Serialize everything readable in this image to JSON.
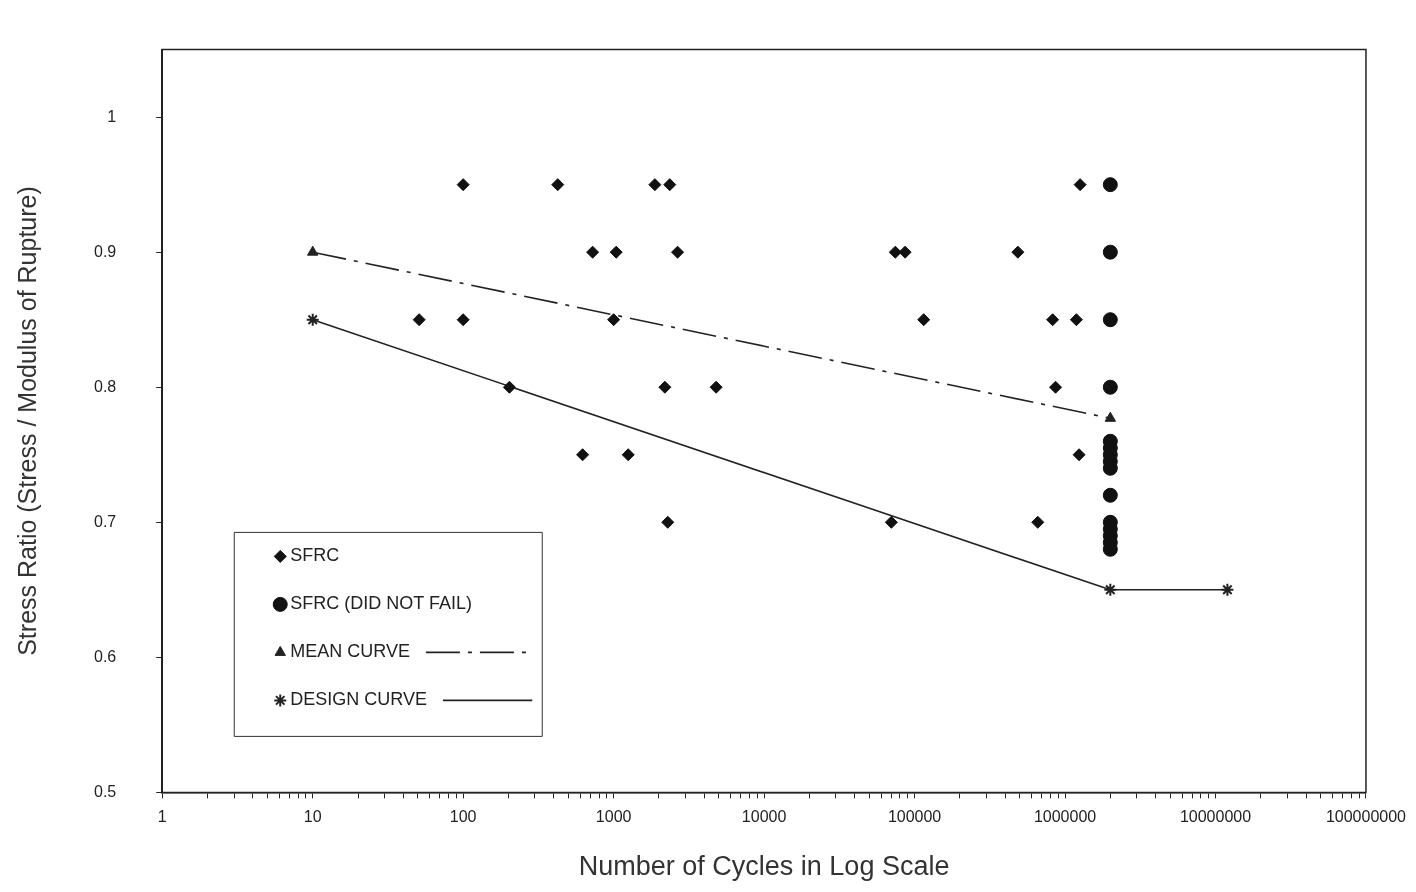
{
  "chart_data": {
    "type": "scatter",
    "xlabel": "Number of Cycles in Log Scale",
    "ylabel": "Stress Ratio (Stress / Modulus of Rupture)",
    "log": "x",
    "grid": false,
    "legend": "bottom left",
    "xlim": [
      1,
      100000000
    ],
    "xticks": [
      1,
      {
        "value": 2,
        "label": null
      },
      {
        "value": 3,
        "label": null
      },
      {
        "value": 4,
        "label": null
      },
      {
        "value": 5,
        "label": null
      },
      {
        "value": 6,
        "label": null
      },
      {
        "value": 7,
        "label": null
      },
      {
        "value": 8,
        "label": null
      },
      {
        "value": 9,
        "label": null
      },
      10,
      {
        "value": 20,
        "label": null
      },
      {
        "value": 30,
        "label": null
      },
      {
        "value": 40,
        "label": null
      },
      {
        "value": 50,
        "label": null
      },
      {
        "value": 60,
        "label": null
      },
      {
        "value": 70,
        "label": null
      },
      {
        "value": 80,
        "label": null
      },
      {
        "value": 90,
        "label": null
      },
      100,
      {
        "value": 200,
        "label": null
      },
      {
        "value": 300,
        "label": null
      },
      {
        "value": 400,
        "label": null
      },
      {
        "value": 500,
        "label": null
      },
      {
        "value": 600,
        "label": null
      },
      {
        "value": 700,
        "label": null
      },
      {
        "value": 800,
        "label": null
      },
      {
        "value": 900,
        "label": null
      },
      1000,
      {
        "value": 2000,
        "label": null
      },
      {
        "value": 3000,
        "label": null
      },
      {
        "value": 4000,
        "label": null
      },
      {
        "value": 5000,
        "label": null
      },
      {
        "value": 6000,
        "label": null
      },
      {
        "value": 7000,
        "label": null
      },
      {
        "value": 8000,
        "label": null
      },
      {
        "value": 9000,
        "label": null
      },
      10000,
      {
        "value": 20000,
        "label": null
      },
      {
        "value": 30000,
        "label": null
      },
      {
        "value": 40000,
        "label": null
      },
      {
        "value": 50000,
        "label": null
      },
      {
        "value": 60000,
        "label": null
      },
      {
        "value": 70000,
        "label": null
      },
      {
        "value": 80000,
        "label": null
      },
      {
        "value": 90000,
        "label": null
      },
      100000,
      {
        "value": 200000,
        "label": null
      },
      {
        "value": 300000,
        "label": null
      },
      {
        "value": 400000,
        "label": null
      },
      {
        "value": 500000,
        "label": null
      },
      {
        "value": 600000,
        "label": null
      },
      {
        "value": 700000,
        "label": null
      },
      {
        "value": 800000,
        "label": null
      },
      {
        "value": 900000,
        "label": null
      },
      1000000,
      {
        "value": 2000000,
        "label": null
      },
      {
        "value": 3000000,
        "label": null
      },
      {
        "value": 4000000,
        "label": null
      },
      {
        "value": 5000000,
        "label": null
      },
      {
        "value": 6000000,
        "label": null
      },
      {
        "value": 7000000,
        "label": null
      },
      {
        "value": 8000000,
        "label": null
      },
      {
        "value": 9000000,
        "label": null
      },
      10000000,
      {
        "value": 20000000,
        "label": null
      },
      {
        "value": 30000000,
        "label": null
      },
      {
        "value": 40000000,
        "label": null
      },
      {
        "value": 50000000,
        "label": null
      },
      {
        "value": 60000000,
        "label": null
      },
      {
        "value": 70000000,
        "label": null
      },
      {
        "value": 80000000,
        "label": null
      },
      {
        "value": 90000000,
        "label": null
      },
      100000000
    ],
    "ylim": [
      0.5,
      1.05
    ],
    "yticks": [
      0.5,
      0.6,
      0.7,
      0.8,
      0.9,
      1
    ],
    "series": [
      {
        "name": "SFRC",
        "marker": "diamond",
        "color": "#111111",
        "x": [
          100,
          425,
          1880,
          2360,
          1260000,
          725,
          1040,
          2660,
          74500,
          86500,
          486000,
          51,
          100,
          1000,
          115000,
          827000,
          1190000,
          203,
          2190,
          4800,
          865000,
          622,
          1250,
          1240000,
          2290,
          70100,
          659000
        ],
        "values": [
          0.95,
          0.95,
          0.95,
          0.95,
          0.95,
          0.9,
          0.9,
          0.9,
          0.9,
          0.9,
          0.9,
          0.85,
          0.85,
          0.85,
          0.85,
          0.85,
          0.85,
          0.8,
          0.8,
          0.8,
          0.8,
          0.75,
          0.75,
          0.75,
          0.7,
          0.7,
          0.7
        ]
      },
      {
        "name": "SFRC (DID NOT FAIL)",
        "marker": "circle",
        "color": "#111111",
        "x": [
          2000000,
          2000000,
          2000000,
          2000000,
          2000000,
          2000000,
          2000000,
          2000000,
          2000000,
          2000000,
          2000000,
          2000000,
          2000000,
          2000000,
          2000000
        ],
        "values": [
          0.95,
          0.9,
          0.85,
          0.8,
          0.76,
          0.755,
          0.75,
          0.745,
          0.74,
          0.72,
          0.7,
          0.695,
          0.69,
          0.685,
          0.68
        ]
      },
      {
        "name": "MEAN CURVE",
        "type": "line",
        "marker": "triangle",
        "line_style": "dashed",
        "color": "#222222",
        "x": [
          10,
          2000000
        ],
        "values": [
          0.9,
          0.777
        ]
      },
      {
        "name": "DESIGN CURVE",
        "type": "line",
        "marker": "cross",
        "line_style": "solid",
        "color": "#222222",
        "x": [
          10,
          2000000,
          12000000
        ],
        "values": [
          0.85,
          0.65,
          0.65
        ]
      }
    ]
  }
}
